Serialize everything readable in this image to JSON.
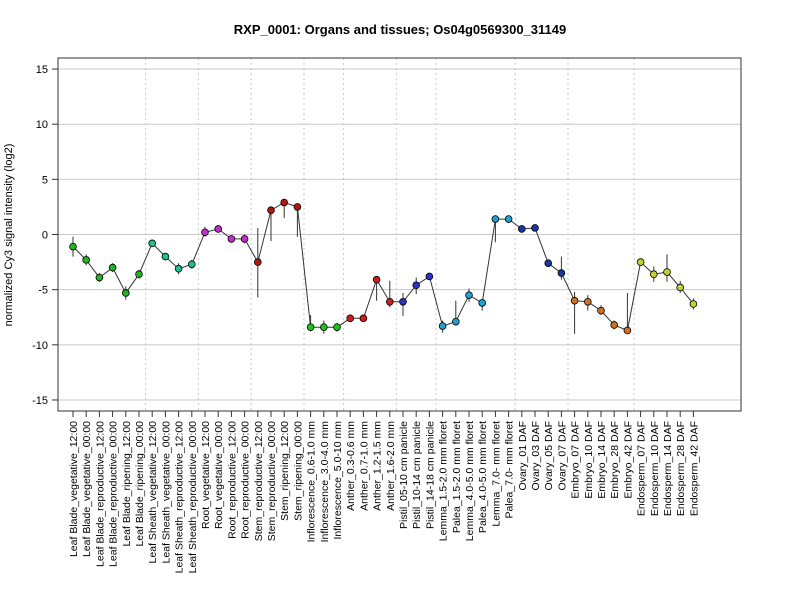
{
  "chart_data": {
    "type": "line",
    "title": "RXP_0001: Organs and tissues; Os04g0569300_31149",
    "xlabel": "",
    "ylabel": "normalized Cy3 signal intensity (log2)",
    "ylim": [
      -16,
      16
    ],
    "yticks": [
      -15,
      -10,
      -5,
      0,
      5,
      10,
      15
    ],
    "grid": "horizontal and vertical dotted",
    "legend": "none",
    "categories": [
      "Leaf Blade_vegetative_12:00",
      "Leaf Blade_vegetative_00:00",
      "Leaf Blade_reproductive_12:00",
      "Leaf Blade_reproductive_00:00",
      "Leaf Blade_ripening_12:00",
      "Leaf Blade_ripening_00:00",
      "Leaf Sheath_vegetative_12:00",
      "Leaf Sheath_vegetative_00:00",
      "Leaf Sheath_reproductive_12:00",
      "Leaf Sheath_reproductive_00:00",
      "Root_vegetative_12:00",
      "Root_vegetative_00:00",
      "Root_reproductive_12:00",
      "Root_reproductive_00:00",
      "Stem_reproductive_12:00",
      "Stem_reproductive_00:00",
      "Stem_ripening_12:00",
      "Stem_ripening_00:00",
      "Inflorescence_0.6-1.0 mm",
      "Inflorescence_3.0-4.0 mm",
      "Inflorescence_5.0-10 mm",
      "Anther_0.3-0.6 mm",
      "Anther_0.7-1.0 mm",
      "Anther_1.2-1.5 mm",
      "Anther_1.6-2.0 mm",
      "Pistil_05-10 cm panicle",
      "Pistil_10-14 cm panicle",
      "Pistil_14-18 cm panicle",
      "Lemma_1.5-2.0 mm floret",
      "Palea_1.5-2.0 mm floret",
      "Lemma_4.0-5.0 mm floret",
      "Palea_4.0-5.0 mm floret",
      "Lemma_7.0- mm floret",
      "Palea_7.0- mm floret",
      "Ovary_01 DAF",
      "Ovary_03 DAF",
      "Ovary_05 DAF",
      "Ovary_07 DAF",
      "Embryo_07 DAF",
      "Embryo_10 DAF",
      "Embryo_14 DAF",
      "Embryo_28 DAF",
      "Embryo_42 DAF",
      "Endosperm_07 DAF",
      "Endosperm_10 DAF",
      "Endosperm_14 DAF",
      "Endosperm_28 DAF",
      "Endosperm_42 DAF"
    ],
    "series": [
      {
        "values": [
          -1.1,
          -2.3,
          -3.9,
          -3.0,
          -5.3,
          -3.6,
          -0.8,
          -2.0,
          -3.1,
          -2.7,
          0.2,
          0.5,
          -0.4,
          -0.4,
          -2.5,
          2.2,
          2.9,
          2.5,
          -8.4,
          -8.4,
          -8.4,
          -7.6,
          -7.6,
          -4.1,
          -6.1,
          -6.1,
          -4.6,
          -3.8,
          -8.3,
          -7.9,
          -5.5,
          -6.2,
          1.4,
          1.4,
          0.5,
          0.6,
          -2.6,
          -3.5,
          -6.0,
          -6.1,
          -6.9,
          -8.2,
          -8.7,
          -2.5,
          -3.6,
          -3.4,
          -4.8,
          -6.3
        ],
        "err_low": [
          -2.0,
          -2.8,
          -4.3,
          -3.4,
          -5.9,
          -4.0,
          -1.1,
          -2.3,
          -3.6,
          -3.1,
          -0.2,
          0.2,
          -0.6,
          -0.8,
          -5.7,
          -0.6,
          1.5,
          -0.2,
          -8.8,
          -9.0,
          -8.8,
          -7.9,
          -7.9,
          -6.0,
          -6.6,
          -7.4,
          -5.4,
          -4.1,
          -8.9,
          -8.2,
          -6.1,
          -6.9,
          -0.7,
          1.1,
          0.2,
          0.3,
          -2.8,
          -4.1,
          -9.0,
          -6.9,
          -7.3,
          -8.6,
          -8.9,
          -2.8,
          -4.3,
          -4.3,
          -5.3,
          -6.8
        ],
        "err_high": [
          -0.2,
          -1.8,
          -3.5,
          -2.6,
          -4.7,
          -3.2,
          -0.5,
          -1.7,
          -2.6,
          -2.3,
          0.7,
          0.8,
          -0.2,
          0.0,
          0.6,
          2.5,
          3.2,
          2.8,
          -7.3,
          -7.8,
          -8.0,
          -7.3,
          -7.3,
          -3.8,
          -4.2,
          -5.3,
          -3.9,
          -3.5,
          -7.8,
          -6.0,
          -4.9,
          -5.9,
          1.7,
          1.7,
          0.7,
          0.8,
          -2.3,
          -2.0,
          -5.2,
          -5.5,
          -6.4,
          -7.8,
          -5.3,
          -2.2,
          -2.9,
          -1.8,
          -4.2,
          -5.8
        ]
      }
    ],
    "point_colors": [
      "#22b422",
      "#22b422",
      "#22b422",
      "#22b422",
      "#22b422",
      "#22b422",
      "#1fbf8f",
      "#1fbf8f",
      "#1fbf8f",
      "#1fbf8f",
      "#c030c8",
      "#c030c8",
      "#c030c8",
      "#c030c8",
      "#b01818",
      "#b01818",
      "#b01818",
      "#b01818",
      "#18c818",
      "#18c818",
      "#18c818",
      "#c82020",
      "#c82020",
      "#c82020",
      "#c82020",
      "#3030c8",
      "#3030c8",
      "#3030c8",
      "#20a0d0",
      "#20a0d0",
      "#20a0d0",
      "#20a0d0",
      "#20a0d0",
      "#20a0d0",
      "#1838a0",
      "#1838a0",
      "#1838a0",
      "#1838a0",
      "#d07020",
      "#d07020",
      "#d07020",
      "#d07020",
      "#d07020",
      "#c0d030",
      "#c0d030",
      "#c0d030",
      "#c0d030",
      "#c0d030"
    ],
    "line_color": "#333333",
    "grid_color": "#c8c8c8"
  }
}
